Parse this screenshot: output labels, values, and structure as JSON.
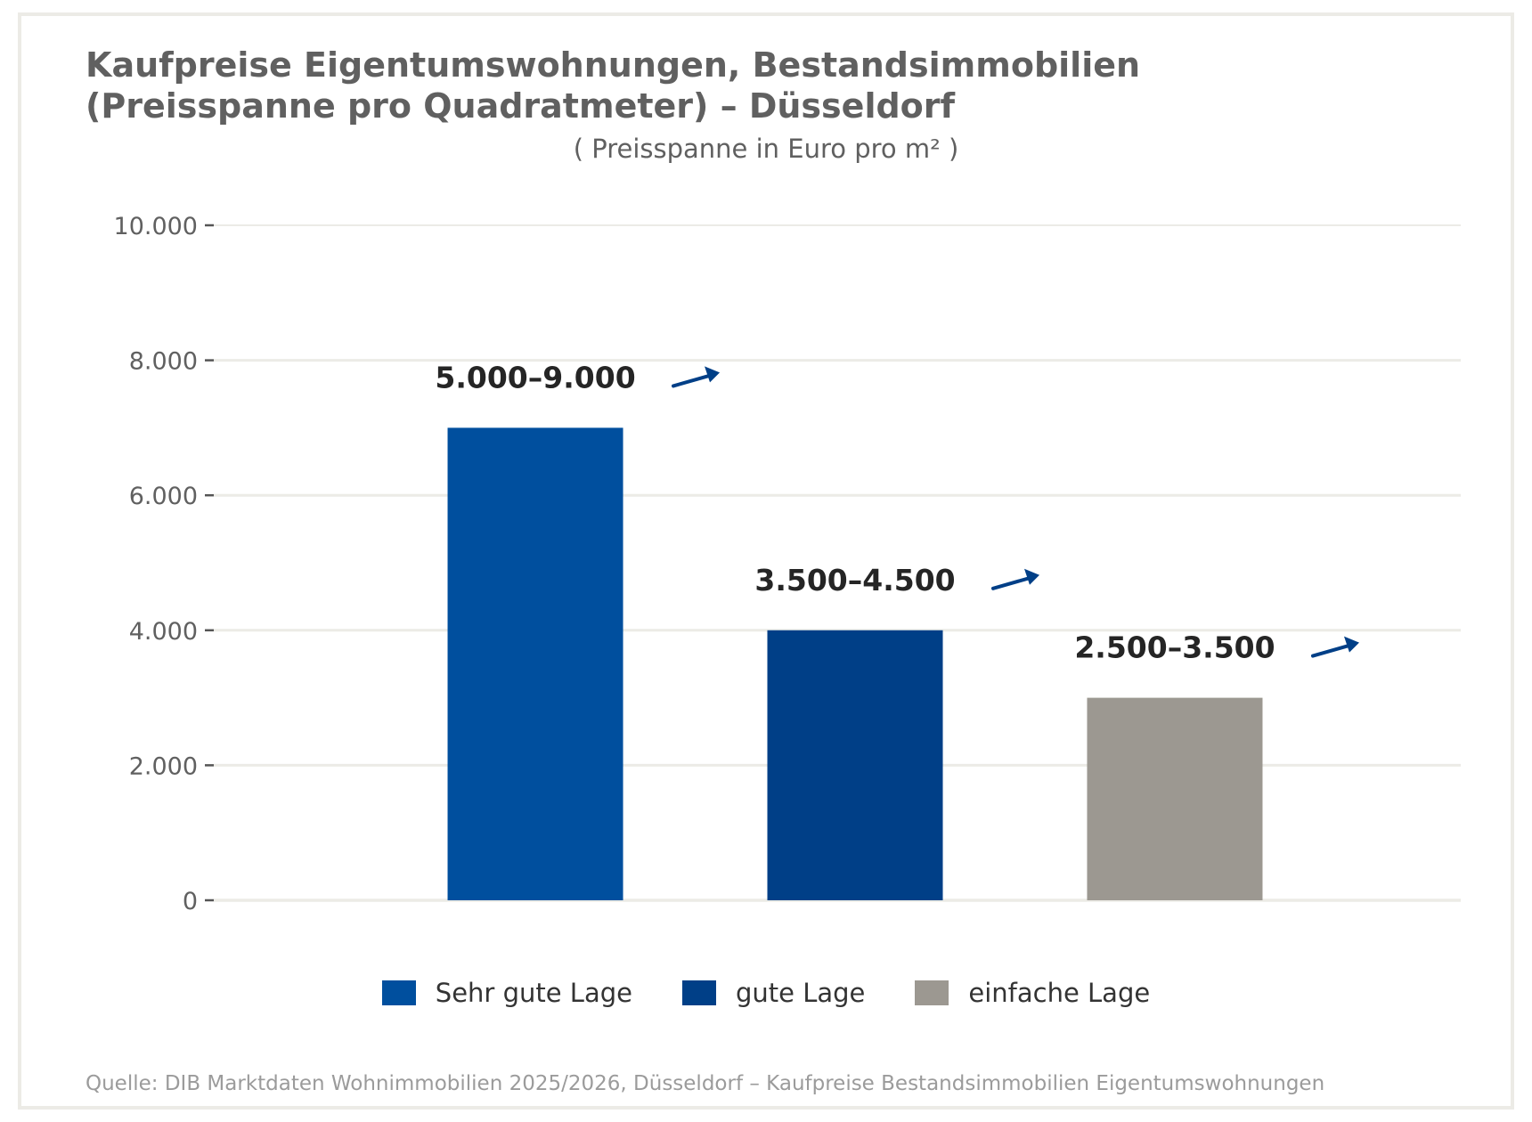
{
  "header": {
    "title_line1": "Kaufpreise Eigentumswohnungen, Bestandsimmobilien",
    "title_line2": "(Preisspanne pro Quadratmeter) – Düsseldorf",
    "subtitle": "( Preisspanne in Euro pro m² )"
  },
  "chart_data": {
    "type": "bar",
    "categories": [
      "Sehr gute Lage",
      "gute Lage",
      "einfache Lage"
    ],
    "values": [
      7000,
      4000,
      3000
    ],
    "value_labels": [
      "5.000–9.000",
      "3.500–4.500",
      "2.500–3.500"
    ],
    "trend_icons": [
      "arrow-up-right-icon",
      "arrow-up-right-icon",
      "arrow-up-right-icon"
    ],
    "colors": [
      "#004f9e",
      "#003f87",
      "#9c9891"
    ],
    "arrow_color": "#003f87",
    "yticks": [
      0,
      2000,
      4000,
      6000,
      8000,
      10000
    ],
    "ytick_labels": [
      "0",
      "2.000",
      "4.000",
      "6.000",
      "8.000",
      "10.000"
    ],
    "ylim": [
      0,
      10000
    ],
    "grid": true,
    "legend_position": "bottom"
  },
  "legend": {
    "items": [
      {
        "label": "Sehr gute Lage",
        "color": "#004f9e"
      },
      {
        "label": "gute Lage",
        "color": "#003f87"
      },
      {
        "label": "einfache Lage",
        "color": "#9c9891"
      }
    ]
  },
  "footer": {
    "source": "Quelle: DIB Marktdaten Wohnimmobilien 2025/2026, Düsseldorf – Kaufpreise Bestandsimmobilien Eigentumswohnungen"
  }
}
